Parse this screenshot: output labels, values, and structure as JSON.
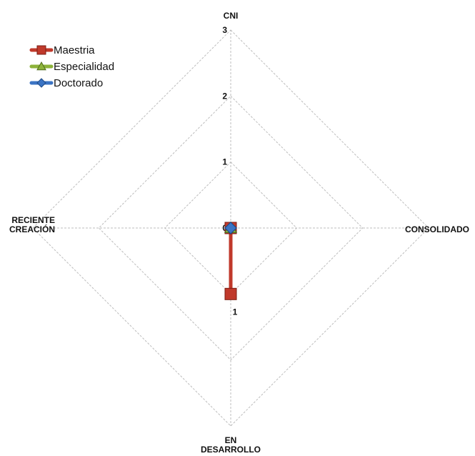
{
  "chart_data": {
    "type": "radar",
    "axes": [
      "CNI",
      "CONSOLIDADO",
      "EN DESARROLLO",
      "RECIENTE CREACIÓN"
    ],
    "axis_label_lines": [
      [
        "CNI"
      ],
      [
        "CONSOLIDADO"
      ],
      [
        "EN",
        "DESARROLLO"
      ],
      [
        "RECIENTE",
        "CREACIÓN"
      ]
    ],
    "rmax": 3,
    "ticks": [
      0,
      1,
      2,
      3
    ],
    "grid": true,
    "legend_position": "top-left",
    "series": [
      {
        "name": "Maestria",
        "values": [
          0,
          0,
          1,
          0
        ],
        "color": "#c0392b",
        "marker": "square"
      },
      {
        "name": "Especialidad",
        "values": [
          0,
          0,
          0,
          0
        ],
        "color": "#8db33a",
        "marker": "triangle"
      },
      {
        "name": "Doctorado",
        "values": [
          0,
          0,
          0,
          0
        ],
        "color": "#3b74c4",
        "marker": "diamond"
      }
    ],
    "data_labels": [
      {
        "series": 0,
        "axis": 2,
        "text": "1"
      }
    ]
  }
}
